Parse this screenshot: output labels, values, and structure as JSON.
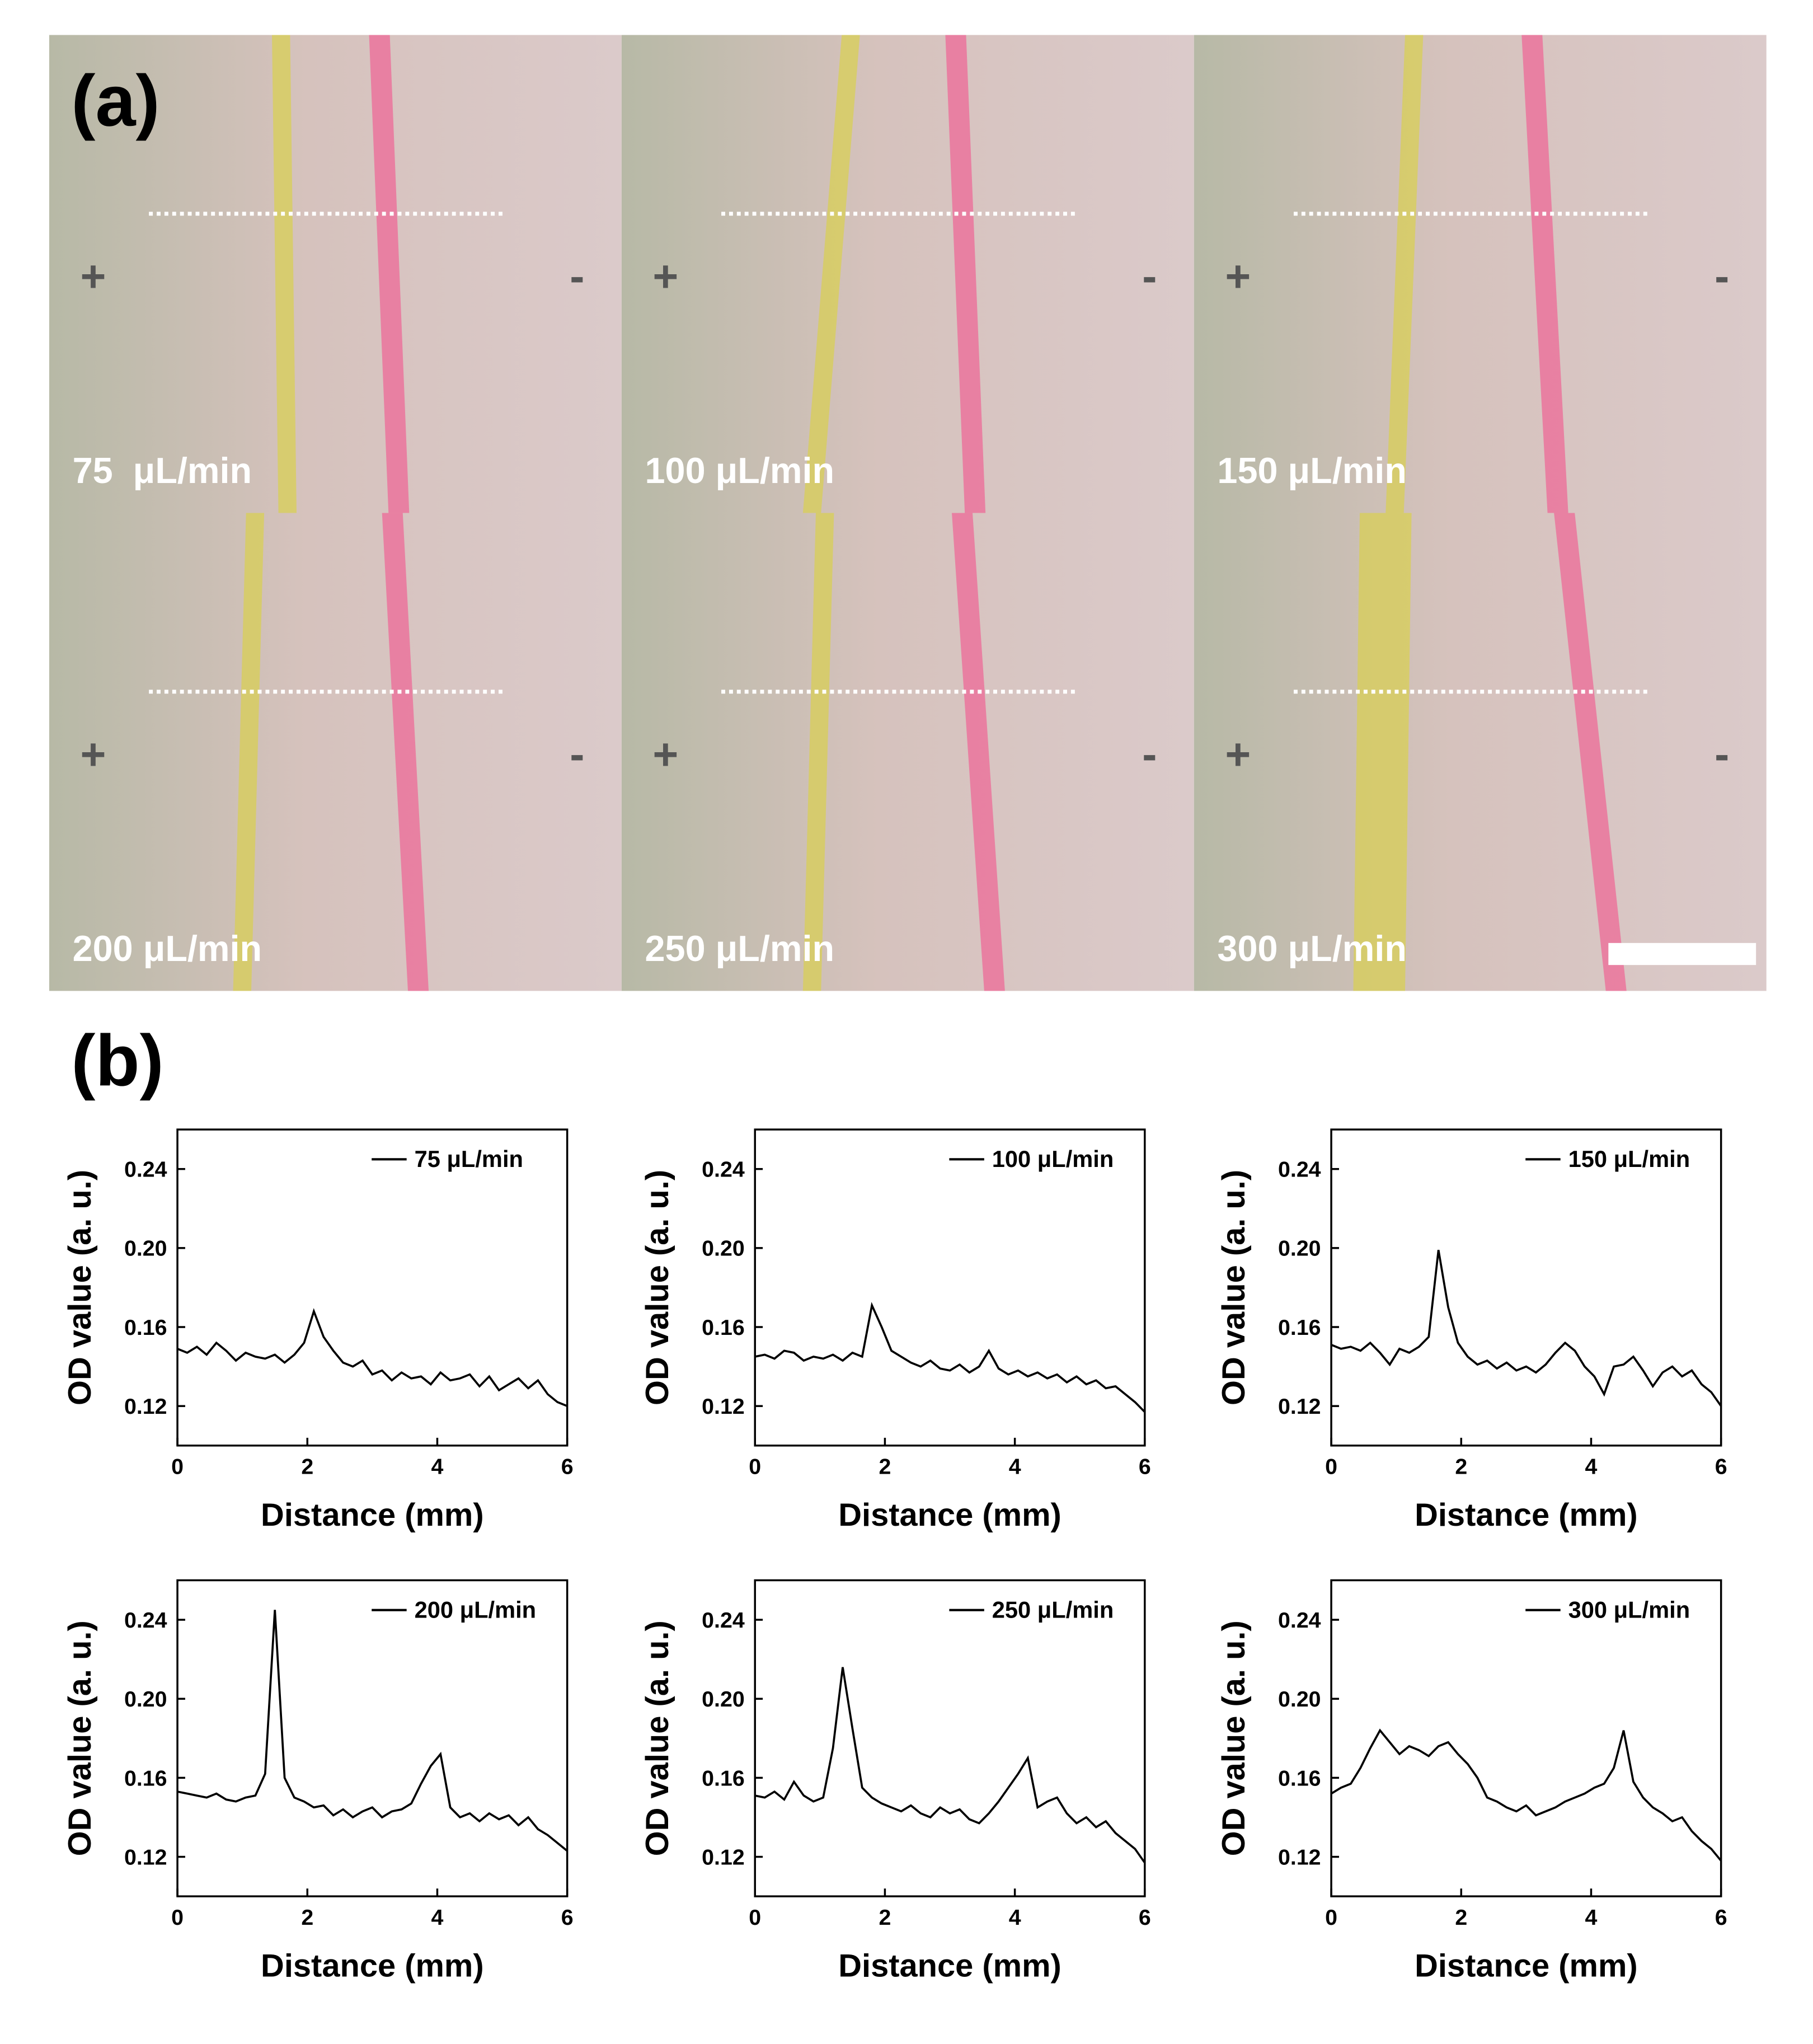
{
  "panel_a": {
    "label": "(a)",
    "tiles": [
      {
        "label": "75  μL/min",
        "plus": "+",
        "minus": "-"
      },
      {
        "label": "100 μL/min",
        "plus": "+",
        "minus": "-"
      },
      {
        "label": "150 μL/min",
        "plus": "+",
        "minus": "-"
      },
      {
        "label": "200 μL/min",
        "plus": "+",
        "minus": "-"
      },
      {
        "label": "250 μL/min",
        "plus": "+",
        "minus": "-"
      },
      {
        "label": "300 μL/min",
        "plus": "+",
        "minus": "-"
      }
    ]
  },
  "panel_b": {
    "label": "(b)"
  },
  "chart_data": [
    {
      "type": "line",
      "xlabel": "Distance (mm)",
      "ylabel": "OD value (a. u.)",
      "xlim": [
        0,
        6
      ],
      "ylim": [
        0.1,
        0.26
      ],
      "xticks": [
        0,
        2,
        4,
        6
      ],
      "yticks": [
        0.12,
        0.16,
        {
          "value": 0.2,
          "label": "0.20"
        },
        0.24
      ],
      "legend": "upper right",
      "x": [
        0,
        0.15,
        0.3,
        0.45,
        0.6,
        0.75,
        0.9,
        1.05,
        1.2,
        1.35,
        1.5,
        1.65,
        1.8,
        1.95,
        2.1,
        2.25,
        2.4,
        2.55,
        2.7,
        2.85,
        3,
        3.15,
        3.3,
        3.45,
        3.6,
        3.75,
        3.9,
        4.05,
        4.2,
        4.35,
        4.5,
        4.65,
        4.8,
        4.95,
        5.1,
        5.25,
        5.4,
        5.55,
        5.7,
        5.85,
        6
      ],
      "series": [
        {
          "name": "75 μL/min",
          "color": "#000000",
          "values": [
            0.149,
            0.147,
            0.15,
            0.146,
            0.152,
            0.148,
            0.143,
            0.147,
            0.145,
            0.144,
            0.146,
            0.142,
            0.146,
            0.152,
            0.168,
            0.155,
            0.148,
            0.142,
            0.14,
            0.143,
            0.136,
            0.138,
            0.133,
            0.137,
            0.134,
            0.135,
            0.131,
            0.137,
            0.133,
            0.134,
            0.136,
            0.13,
            0.135,
            0.128,
            0.131,
            0.134,
            0.129,
            0.133,
            0.126,
            0.122,
            0.12
          ]
        }
      ]
    },
    {
      "type": "line",
      "xlabel": "Distance (mm)",
      "ylabel": "OD value (a. u.)",
      "xlim": [
        0,
        6
      ],
      "ylim": [
        0.1,
        0.26
      ],
      "xticks": [
        0,
        2,
        4,
        6
      ],
      "yticks": [
        0.12,
        0.16,
        {
          "value": 0.2,
          "label": "0.20"
        },
        0.24
      ],
      "legend": "upper right",
      "x": [
        0,
        0.15,
        0.3,
        0.45,
        0.6,
        0.75,
        0.9,
        1.05,
        1.2,
        1.35,
        1.5,
        1.65,
        1.8,
        1.95,
        2.1,
        2.25,
        2.4,
        2.55,
        2.7,
        2.85,
        3,
        3.15,
        3.3,
        3.45,
        3.6,
        3.75,
        3.9,
        4.05,
        4.2,
        4.35,
        4.5,
        4.65,
        4.8,
        4.95,
        5.1,
        5.25,
        5.4,
        5.55,
        5.7,
        5.85,
        6
      ],
      "series": [
        {
          "name": "100 μL/min",
          "color": "#000000",
          "values": [
            0.145,
            0.146,
            0.144,
            0.148,
            0.147,
            0.143,
            0.145,
            0.144,
            0.146,
            0.143,
            0.147,
            0.145,
            0.171,
            0.16,
            0.148,
            0.145,
            0.142,
            0.14,
            0.143,
            0.139,
            0.138,
            0.141,
            0.137,
            0.14,
            0.148,
            0.139,
            0.136,
            0.138,
            0.135,
            0.137,
            0.134,
            0.136,
            0.132,
            0.135,
            0.131,
            0.133,
            0.129,
            0.13,
            0.126,
            0.122,
            0.117
          ]
        }
      ]
    },
    {
      "type": "line",
      "xlabel": "Distance (mm)",
      "ylabel": "OD value (a. u.)",
      "xlim": [
        0,
        6
      ],
      "ylim": [
        0.1,
        0.26
      ],
      "xticks": [
        0,
        2,
        4,
        6
      ],
      "yticks": [
        0.12,
        0.16,
        {
          "value": 0.2,
          "label": "0.20"
        },
        0.24
      ],
      "legend": "upper right",
      "x": [
        0,
        0.15,
        0.3,
        0.45,
        0.6,
        0.75,
        0.9,
        1.05,
        1.2,
        1.35,
        1.5,
        1.65,
        1.8,
        1.95,
        2.1,
        2.25,
        2.4,
        2.55,
        2.7,
        2.85,
        3,
        3.15,
        3.3,
        3.45,
        3.6,
        3.75,
        3.9,
        4.05,
        4.2,
        4.35,
        4.5,
        4.65,
        4.8,
        4.95,
        5.1,
        5.25,
        5.4,
        5.55,
        5.7,
        5.85,
        6
      ],
      "series": [
        {
          "name": "150 μL/min",
          "color": "#000000",
          "values": [
            0.151,
            0.149,
            0.15,
            0.148,
            0.152,
            0.147,
            0.141,
            0.149,
            0.147,
            0.15,
            0.155,
            0.199,
            0.17,
            0.152,
            0.145,
            0.141,
            0.143,
            0.139,
            0.142,
            0.138,
            0.14,
            0.137,
            0.141,
            0.147,
            0.152,
            0.148,
            0.14,
            0.135,
            0.126,
            0.14,
            0.141,
            0.145,
            0.138,
            0.13,
            0.137,
            0.14,
            0.135,
            0.138,
            0.131,
            0.127,
            0.12
          ]
        }
      ]
    },
    {
      "type": "line",
      "xlabel": "Distance (mm)",
      "ylabel": "OD value (a. u.)",
      "xlim": [
        0,
        6
      ],
      "ylim": [
        0.1,
        0.26
      ],
      "xticks": [
        0,
        2,
        4,
        6
      ],
      "yticks": [
        0.12,
        0.16,
        {
          "value": 0.2,
          "label": "0.20"
        },
        0.24
      ],
      "legend": "upper right",
      "x": [
        0,
        0.15,
        0.3,
        0.45,
        0.6,
        0.75,
        0.9,
        1.05,
        1.2,
        1.35,
        1.5,
        1.65,
        1.8,
        1.95,
        2.1,
        2.25,
        2.4,
        2.55,
        2.7,
        2.85,
        3,
        3.15,
        3.3,
        3.45,
        3.6,
        3.75,
        3.9,
        4.05,
        4.2,
        4.35,
        4.5,
        4.65,
        4.8,
        4.95,
        5.1,
        5.25,
        5.4,
        5.55,
        5.7,
        5.85,
        6
      ],
      "series": [
        {
          "name": "200 μL/min",
          "color": "#000000",
          "values": [
            0.153,
            0.152,
            0.151,
            0.15,
            0.152,
            0.149,
            0.148,
            0.15,
            0.151,
            0.162,
            0.245,
            0.16,
            0.15,
            0.148,
            0.145,
            0.146,
            0.141,
            0.144,
            0.14,
            0.143,
            0.145,
            0.14,
            0.143,
            0.144,
            0.147,
            0.157,
            0.166,
            0.172,
            0.145,
            0.14,
            0.142,
            0.138,
            0.142,
            0.139,
            0.141,
            0.136,
            0.14,
            0.134,
            0.131,
            0.127,
            0.123
          ]
        }
      ]
    },
    {
      "type": "line",
      "xlabel": "Distance (mm)",
      "ylabel": "OD value (a. u.)",
      "xlim": [
        0,
        6
      ],
      "ylim": [
        0.1,
        0.26
      ],
      "xticks": [
        0,
        2,
        4,
        6
      ],
      "yticks": [
        0.12,
        0.16,
        {
          "value": 0.2,
          "label": "0.20"
        },
        0.24
      ],
      "legend": "upper right",
      "x": [
        0,
        0.15,
        0.3,
        0.45,
        0.6,
        0.75,
        0.9,
        1.05,
        1.2,
        1.35,
        1.5,
        1.65,
        1.8,
        1.95,
        2.1,
        2.25,
        2.4,
        2.55,
        2.7,
        2.85,
        3,
        3.15,
        3.3,
        3.45,
        3.6,
        3.75,
        3.9,
        4.05,
        4.2,
        4.35,
        4.5,
        4.65,
        4.8,
        4.95,
        5.1,
        5.25,
        5.4,
        5.55,
        5.7,
        5.85,
        6
      ],
      "series": [
        {
          "name": "250 μL/min",
          "color": "#000000",
          "values": [
            0.151,
            0.15,
            0.153,
            0.149,
            0.158,
            0.151,
            0.148,
            0.15,
            0.175,
            0.216,
            0.185,
            0.155,
            0.15,
            0.147,
            0.145,
            0.143,
            0.146,
            0.142,
            0.14,
            0.145,
            0.142,
            0.144,
            0.139,
            0.137,
            0.142,
            0.148,
            0.155,
            0.162,
            0.17,
            0.145,
            0.148,
            0.15,
            0.142,
            0.137,
            0.14,
            0.135,
            0.138,
            0.132,
            0.128,
            0.124,
            0.117
          ]
        }
      ]
    },
    {
      "type": "line",
      "xlabel": "Distance (mm)",
      "ylabel": "OD value (a. u.)",
      "xlim": [
        0,
        6
      ],
      "ylim": [
        0.1,
        0.26
      ],
      "xticks": [
        0,
        2,
        4,
        6
      ],
      "yticks": [
        0.12,
        0.16,
        {
          "value": 0.2,
          "label": "0.20"
        },
        0.24
      ],
      "legend": "upper right",
      "x": [
        0,
        0.15,
        0.3,
        0.45,
        0.6,
        0.75,
        0.9,
        1.05,
        1.2,
        1.35,
        1.5,
        1.65,
        1.8,
        1.95,
        2.1,
        2.25,
        2.4,
        2.55,
        2.7,
        2.85,
        3,
        3.15,
        3.3,
        3.45,
        3.6,
        3.75,
        3.9,
        4.05,
        4.2,
        4.35,
        4.5,
        4.65,
        4.8,
        4.95,
        5.1,
        5.25,
        5.4,
        5.55,
        5.7,
        5.85,
        6
      ],
      "series": [
        {
          "name": "300 μL/min",
          "color": "#000000",
          "values": [
            0.152,
            0.155,
            0.157,
            0.165,
            0.175,
            0.184,
            0.178,
            0.172,
            0.176,
            0.174,
            0.171,
            0.176,
            0.178,
            0.172,
            0.167,
            0.16,
            0.15,
            0.148,
            0.145,
            0.143,
            0.146,
            0.141,
            0.143,
            0.145,
            0.148,
            0.15,
            0.152,
            0.155,
            0.157,
            0.165,
            0.184,
            0.158,
            0.15,
            0.145,
            0.142,
            0.138,
            0.14,
            0.133,
            0.128,
            0.124,
            0.118
          ]
        }
      ]
    }
  ]
}
